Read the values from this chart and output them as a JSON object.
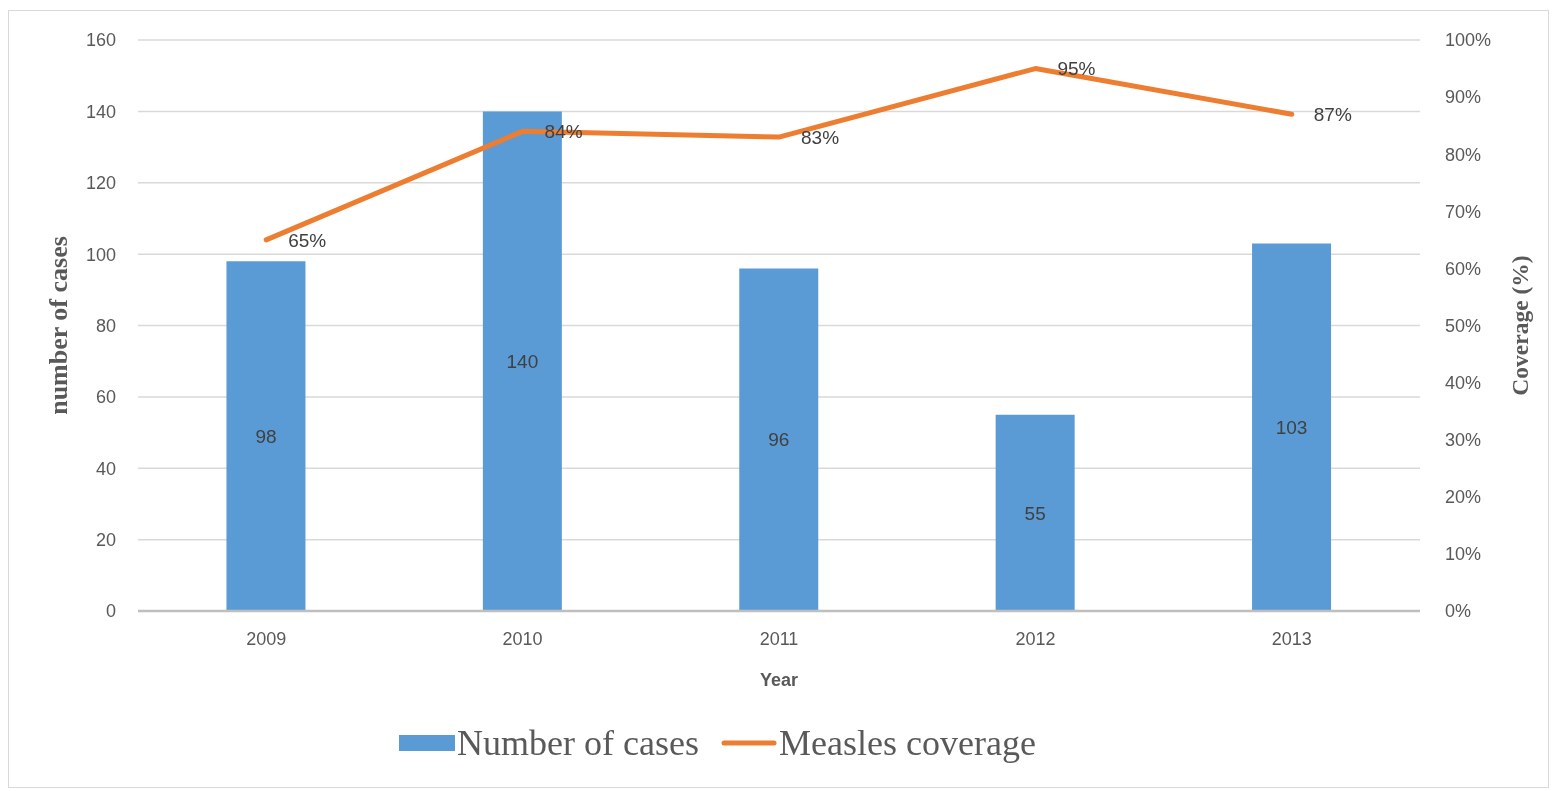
{
  "chart_data": {
    "type": "bar",
    "categories": [
      "2009",
      "2010",
      "2011",
      "2012",
      "2013"
    ],
    "xlabel": "Year",
    "ylabel": "number of cases",
    "y2label": "Coverage (%)",
    "series": [
      {
        "name": "Number of cases",
        "color": "#5b9bd5",
        "values": [
          98,
          140,
          96,
          55,
          103
        ],
        "value_labels": [
          "98",
          "140",
          "96",
          "55",
          "103"
        ]
      },
      {
        "name": "Measles coverage",
        "type": "line",
        "axis": "y2",
        "color": "#ed7d31",
        "values": [
          65,
          84,
          83,
          95,
          87
        ],
        "value_labels": [
          "65%",
          "84%",
          "83%",
          "95%",
          "87%"
        ]
      }
    ],
    "ylim": [
      0,
      160
    ],
    "yticks": [
      0,
      20,
      40,
      60,
      80,
      100,
      120,
      140,
      160
    ],
    "y2lim": [
      0,
      100
    ],
    "y2ticks": [
      {
        "value": 0,
        "label": "0%"
      },
      {
        "value": 10,
        "label": "10%"
      },
      {
        "value": 20,
        "label": "20%"
      },
      {
        "value": 30,
        "label": "30%"
      },
      {
        "value": 40,
        "label": "40%"
      },
      {
        "value": 50,
        "label": "50%"
      },
      {
        "value": 60,
        "label": "60%"
      },
      {
        "value": 70,
        "label": "70%"
      },
      {
        "value": 80,
        "label": "80%"
      },
      {
        "value": 90,
        "label": "90%"
      },
      {
        "value": 100,
        "label": "100%"
      }
    ],
    "grid": "y",
    "legend": "bottom",
    "marker": "none"
  }
}
